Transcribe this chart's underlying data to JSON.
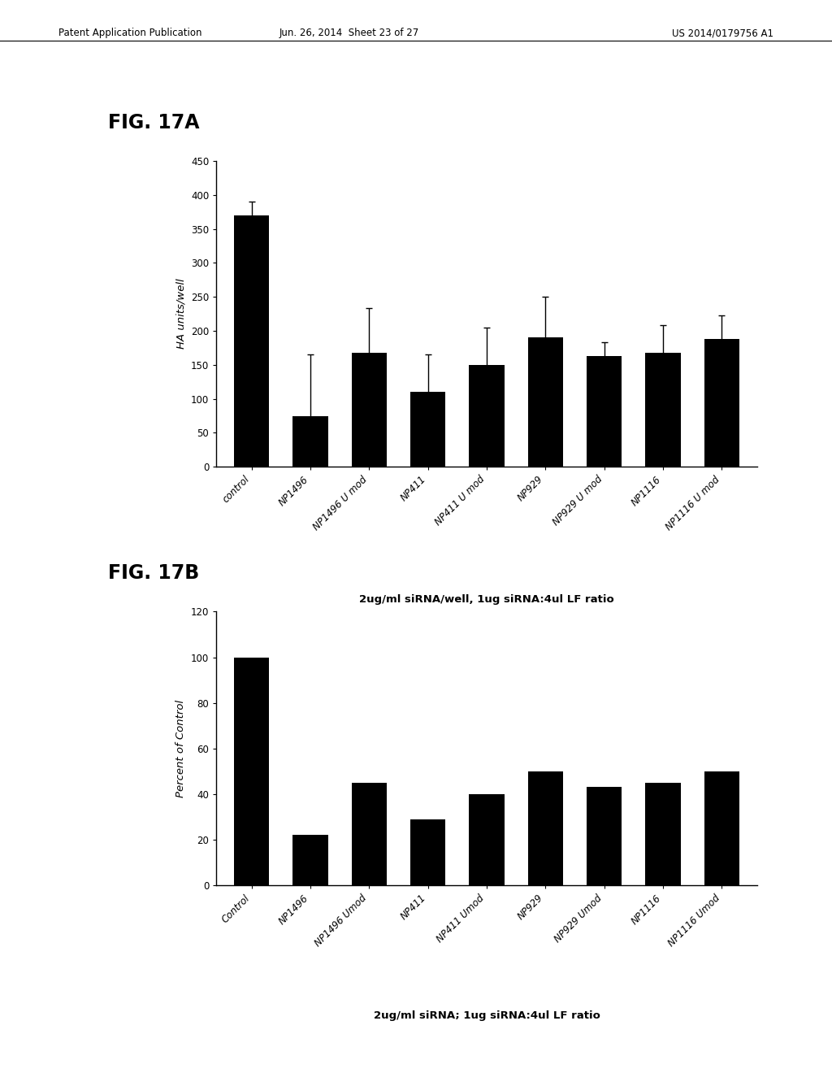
{
  "fig17a": {
    "categories": [
      "control",
      "NP1496",
      "NP1496 U mod",
      "NP411",
      "NP411 U mod",
      "NP929",
      "NP929 U mod",
      "NP1116",
      "NP1116 U mod"
    ],
    "values": [
      370,
      75,
      168,
      110,
      150,
      190,
      163,
      168,
      188
    ],
    "errors": [
      20,
      90,
      65,
      55,
      55,
      60,
      20,
      40,
      35
    ],
    "ylabel": "HA units/well",
    "xlabel": "2ug/ml siRNA/well, 1ug siRNA:4ul LF ratio",
    "ylim": [
      0,
      450
    ],
    "yticks": [
      0,
      50,
      100,
      150,
      200,
      250,
      300,
      350,
      400,
      450
    ],
    "bar_color": "#000000",
    "fig_label": "FIG. 17A"
  },
  "fig17b": {
    "categories": [
      "Control",
      "NP1496",
      "NP1496 Umod",
      "NP411",
      "NP411 Umod",
      "NP929",
      "NP929 Umod",
      "NP1116",
      "NP1116 Umod"
    ],
    "values": [
      100,
      22,
      45,
      29,
      40,
      50,
      43,
      45,
      50
    ],
    "ylabel": "Percent of Control",
    "xlabel": "2ug/ml siRNA; 1ug siRNA:4ul LF ratio",
    "ylim": [
      0,
      120
    ],
    "yticks": [
      0,
      20,
      40,
      60,
      80,
      100,
      120
    ],
    "bar_color": "#000000",
    "fig_label": "FIG. 17B"
  },
  "header_left": "Patent Application Publication",
  "header_mid": "Jun. 26, 2014  Sheet 23 of 27",
  "header_right": "US 2014/0179756 A1",
  "bg_color": "#ffffff"
}
